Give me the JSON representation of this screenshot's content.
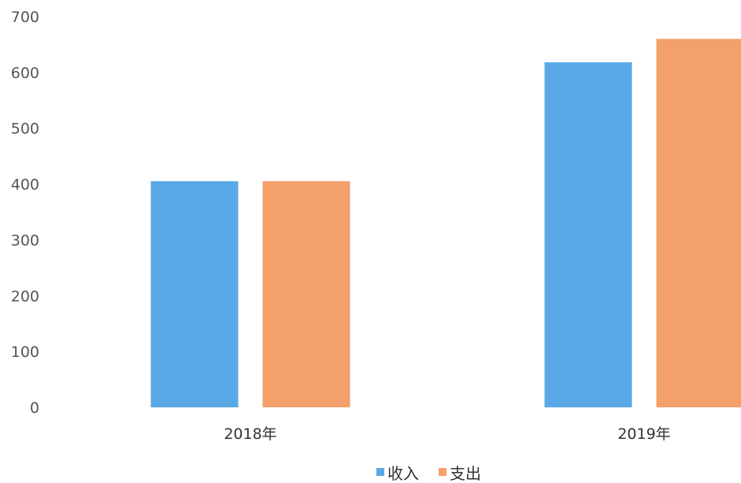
{
  "chart_data": {
    "type": "bar",
    "categories": [
      "2018年",
      "2019年"
    ],
    "series": [
      {
        "name": "收入",
        "values": [
          405,
          618
        ],
        "color": "#5aa9e6"
      },
      {
        "name": "支出",
        "values": [
          405,
          660
        ],
        "color": "#f4a06a"
      }
    ],
    "ylim": [
      0,
      700
    ],
    "yticks": [
      "0",
      "100",
      "200",
      "300",
      "400",
      "500",
      "600",
      "700"
    ],
    "grid": false,
    "legend_position": "bottom-center"
  }
}
